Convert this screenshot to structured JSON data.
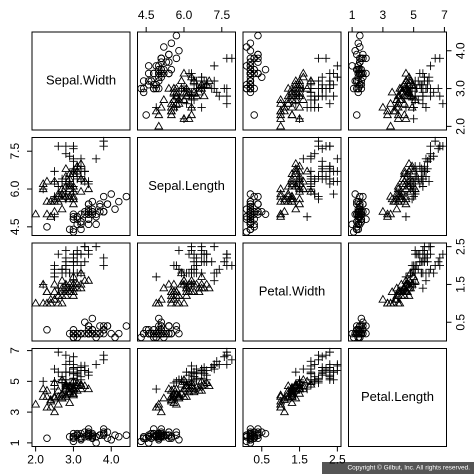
{
  "chart_data": {
    "type": "scatter_matrix",
    "variables": [
      {
        "label": "Sepal.Width",
        "lim": [
          1.904,
          4.496
        ],
        "ticks": [
          {
            "value": 2,
            "label": "2.0"
          },
          {
            "value": 3,
            "label": "3.0"
          },
          {
            "value": 4,
            "label": "4.0"
          }
        ]
      },
      {
        "label": "Sepal.Length",
        "lim": [
          4.156,
          8.044
        ],
        "ticks": [
          4.5,
          {
            "value": 6,
            "label": "6.0"
          },
          7.5
        ]
      },
      {
        "label": "Petal.Width",
        "lim": [
          0.004,
          2.596
        ],
        "ticks": [
          0.5,
          1.5,
          2.5
        ]
      },
      {
        "label": "Petal.Length",
        "lim": [
          0.764,
          7.136
        ],
        "ticks": [
          1,
          3,
          5,
          7
        ]
      }
    ],
    "series": [
      {
        "marker": "circle",
        "color": "#000000",
        "points": [
          [
            3.5,
            5.1,
            0.2,
            1.4
          ],
          [
            3.0,
            4.9,
            0.2,
            1.4
          ],
          [
            3.2,
            4.7,
            0.2,
            1.3
          ],
          [
            3.1,
            4.6,
            0.2,
            1.5
          ],
          [
            3.6,
            5.0,
            0.2,
            1.4
          ],
          [
            3.9,
            5.4,
            0.4,
            1.7
          ],
          [
            3.4,
            4.6,
            0.3,
            1.4
          ],
          [
            3.4,
            5.0,
            0.2,
            1.5
          ],
          [
            2.9,
            4.4,
            0.2,
            1.4
          ],
          [
            3.1,
            4.9,
            0.1,
            1.5
          ],
          [
            3.7,
            5.4,
            0.2,
            1.5
          ],
          [
            3.4,
            4.8,
            0.2,
            1.6
          ],
          [
            3.0,
            4.8,
            0.1,
            1.4
          ],
          [
            3.0,
            4.3,
            0.1,
            1.1
          ],
          [
            4.0,
            5.8,
            0.2,
            1.2
          ],
          [
            4.4,
            5.7,
            0.4,
            1.5
          ],
          [
            3.9,
            5.4,
            0.4,
            1.3
          ],
          [
            3.5,
            5.1,
            0.3,
            1.4
          ],
          [
            3.8,
            5.7,
            0.3,
            1.7
          ],
          [
            3.8,
            5.1,
            0.3,
            1.5
          ],
          [
            3.4,
            5.4,
            0.2,
            1.7
          ],
          [
            3.7,
            5.1,
            0.4,
            1.5
          ],
          [
            3.6,
            4.6,
            0.2,
            1.0
          ],
          [
            3.3,
            5.1,
            0.5,
            1.7
          ],
          [
            3.4,
            4.8,
            0.2,
            1.9
          ],
          [
            3.0,
            5.0,
            0.2,
            1.6
          ],
          [
            3.4,
            5.0,
            0.4,
            1.6
          ],
          [
            3.5,
            5.2,
            0.2,
            1.5
          ],
          [
            3.4,
            5.2,
            0.2,
            1.4
          ],
          [
            3.2,
            4.7,
            0.2,
            1.6
          ],
          [
            3.1,
            4.8,
            0.2,
            1.6
          ],
          [
            3.4,
            5.4,
            0.4,
            1.5
          ],
          [
            4.1,
            5.2,
            0.1,
            1.5
          ],
          [
            4.2,
            5.5,
            0.2,
            1.4
          ],
          [
            3.1,
            4.9,
            0.2,
            1.5
          ],
          [
            3.2,
            5.0,
            0.2,
            1.2
          ],
          [
            3.5,
            5.5,
            0.2,
            1.3
          ],
          [
            3.6,
            4.9,
            0.1,
            1.4
          ],
          [
            3.0,
            4.4,
            0.2,
            1.3
          ],
          [
            3.4,
            5.1,
            0.2,
            1.5
          ],
          [
            3.5,
            5.0,
            0.3,
            1.3
          ],
          [
            2.3,
            4.5,
            0.3,
            1.3
          ],
          [
            3.2,
            4.4,
            0.2,
            1.3
          ],
          [
            3.5,
            5.0,
            0.6,
            1.6
          ],
          [
            3.8,
            5.1,
            0.4,
            1.9
          ],
          [
            3.0,
            4.8,
            0.3,
            1.4
          ],
          [
            3.8,
            5.1,
            0.2,
            1.6
          ],
          [
            3.2,
            4.6,
            0.2,
            1.4
          ],
          [
            3.7,
            5.3,
            0.2,
            1.5
          ],
          [
            3.3,
            5.0,
            0.2,
            1.4
          ]
        ]
      },
      {
        "marker": "triangle",
        "color": "#000000",
        "points": [
          [
            3.2,
            7.0,
            1.4,
            4.7
          ],
          [
            3.2,
            6.4,
            1.5,
            4.5
          ],
          [
            3.1,
            6.9,
            1.5,
            4.9
          ],
          [
            2.3,
            5.5,
            1.3,
            4.0
          ],
          [
            2.8,
            6.5,
            1.5,
            4.6
          ],
          [
            2.8,
            5.7,
            1.3,
            4.5
          ],
          [
            3.3,
            6.3,
            1.6,
            4.7
          ],
          [
            2.4,
            4.9,
            1.0,
            3.3
          ],
          [
            2.9,
            6.6,
            1.3,
            4.6
          ],
          [
            2.7,
            5.2,
            1.4,
            3.9
          ],
          [
            2.0,
            5.0,
            1.0,
            3.5
          ],
          [
            3.0,
            5.9,
            1.5,
            4.2
          ],
          [
            2.2,
            6.0,
            1.0,
            4.0
          ],
          [
            2.9,
            6.1,
            1.4,
            4.7
          ],
          [
            2.9,
            5.6,
            1.3,
            3.6
          ],
          [
            3.1,
            6.7,
            1.4,
            4.4
          ],
          [
            3.0,
            5.6,
            1.5,
            4.5
          ],
          [
            2.7,
            5.8,
            1.0,
            4.1
          ],
          [
            2.2,
            6.2,
            1.5,
            4.5
          ],
          [
            2.5,
            5.6,
            1.1,
            3.9
          ],
          [
            3.2,
            5.9,
            1.8,
            4.8
          ],
          [
            2.8,
            6.1,
            1.3,
            4.0
          ],
          [
            2.5,
            6.3,
            1.5,
            4.9
          ],
          [
            2.8,
            6.1,
            1.2,
            4.7
          ],
          [
            2.9,
            6.4,
            1.3,
            4.3
          ],
          [
            3.0,
            6.6,
            1.4,
            4.4
          ],
          [
            2.8,
            6.8,
            1.4,
            4.8
          ],
          [
            3.0,
            6.7,
            1.7,
            5.0
          ],
          [
            2.9,
            6.0,
            1.5,
            4.5
          ],
          [
            2.6,
            5.7,
            1.0,
            3.5
          ],
          [
            2.4,
            5.5,
            1.1,
            3.8
          ],
          [
            2.4,
            5.5,
            1.0,
            3.7
          ],
          [
            2.7,
            5.8,
            1.2,
            3.9
          ],
          [
            2.7,
            6.0,
            1.6,
            5.1
          ],
          [
            3.0,
            5.4,
            1.5,
            4.5
          ],
          [
            3.4,
            6.0,
            1.6,
            4.5
          ],
          [
            3.1,
            6.7,
            1.5,
            4.7
          ],
          [
            2.3,
            6.3,
            1.3,
            4.4
          ],
          [
            3.0,
            5.6,
            1.3,
            4.1
          ],
          [
            2.5,
            5.5,
            1.3,
            4.0
          ],
          [
            2.6,
            5.5,
            1.2,
            4.4
          ],
          [
            3.0,
            6.1,
            1.4,
            4.6
          ],
          [
            2.6,
            5.8,
            1.2,
            4.0
          ],
          [
            2.3,
            5.0,
            1.0,
            3.3
          ],
          [
            2.7,
            5.6,
            1.3,
            4.2
          ],
          [
            3.0,
            5.7,
            1.2,
            4.2
          ],
          [
            2.9,
            5.7,
            1.3,
            4.2
          ],
          [
            2.9,
            6.2,
            1.3,
            4.3
          ],
          [
            2.5,
            5.1,
            1.1,
            3.0
          ],
          [
            2.8,
            5.7,
            1.3,
            4.1
          ]
        ]
      },
      {
        "marker": "plus",
        "color": "#000000",
        "points": [
          [
            3.3,
            6.3,
            2.5,
            6.0
          ],
          [
            2.7,
            5.8,
            1.9,
            5.1
          ],
          [
            3.0,
            7.1,
            2.1,
            5.9
          ],
          [
            2.9,
            6.3,
            1.8,
            5.6
          ],
          [
            3.0,
            6.5,
            2.2,
            5.8
          ],
          [
            3.0,
            7.6,
            2.1,
            6.6
          ],
          [
            2.5,
            4.9,
            1.7,
            4.5
          ],
          [
            2.9,
            7.3,
            1.8,
            6.3
          ],
          [
            2.5,
            6.7,
            1.8,
            5.8
          ],
          [
            3.6,
            7.2,
            2.5,
            6.1
          ],
          [
            3.2,
            6.5,
            2.0,
            5.1
          ],
          [
            2.7,
            6.4,
            1.9,
            5.3
          ],
          [
            3.0,
            6.8,
            2.1,
            5.5
          ],
          [
            2.5,
            5.7,
            2.0,
            5.0
          ],
          [
            2.8,
            5.8,
            2.4,
            5.1
          ],
          [
            3.2,
            6.4,
            2.3,
            5.3
          ],
          [
            3.0,
            6.5,
            1.8,
            5.5
          ],
          [
            3.8,
            7.7,
            2.2,
            6.7
          ],
          [
            2.6,
            7.7,
            2.3,
            6.9
          ],
          [
            2.2,
            6.0,
            1.5,
            5.0
          ],
          [
            3.2,
            6.9,
            2.3,
            5.7
          ],
          [
            2.8,
            5.6,
            2.0,
            4.9
          ],
          [
            2.8,
            7.7,
            2.0,
            6.7
          ],
          [
            2.7,
            6.3,
            1.8,
            4.9
          ],
          [
            3.3,
            6.7,
            2.1,
            5.7
          ],
          [
            3.2,
            7.2,
            1.8,
            6.0
          ],
          [
            2.8,
            6.2,
            1.8,
            4.8
          ],
          [
            3.0,
            6.1,
            1.8,
            4.9
          ],
          [
            2.8,
            6.4,
            2.1,
            5.6
          ],
          [
            3.0,
            7.2,
            1.6,
            5.8
          ],
          [
            2.8,
            7.4,
            1.9,
            6.1
          ],
          [
            3.8,
            7.9,
            2.0,
            6.4
          ],
          [
            2.8,
            6.4,
            2.2,
            5.6
          ],
          [
            2.8,
            6.3,
            1.5,
            5.1
          ],
          [
            2.6,
            6.1,
            1.4,
            5.6
          ],
          [
            3.0,
            7.7,
            2.3,
            6.1
          ],
          [
            3.4,
            6.3,
            2.4,
            5.6
          ],
          [
            3.1,
            6.4,
            1.8,
            5.5
          ],
          [
            3.0,
            6.0,
            1.8,
            4.8
          ],
          [
            3.1,
            6.9,
            2.1,
            5.4
          ],
          [
            3.1,
            6.7,
            2.4,
            5.6
          ],
          [
            3.1,
            6.9,
            2.3,
            5.1
          ],
          [
            2.7,
            5.8,
            1.9,
            5.1
          ],
          [
            3.2,
            6.8,
            2.3,
            5.9
          ],
          [
            3.3,
            6.7,
            2.5,
            5.7
          ],
          [
            3.0,
            6.7,
            2.3,
            5.2
          ],
          [
            2.5,
            6.3,
            1.9,
            5.0
          ],
          [
            3.0,
            6.5,
            2.0,
            5.2
          ],
          [
            3.4,
            6.2,
            2.3,
            5.4
          ],
          [
            3.0,
            5.9,
            1.8,
            5.1
          ]
        ]
      }
    ],
    "annotation": "Copyright © Gilbut, Inc. All rights reserved."
  }
}
